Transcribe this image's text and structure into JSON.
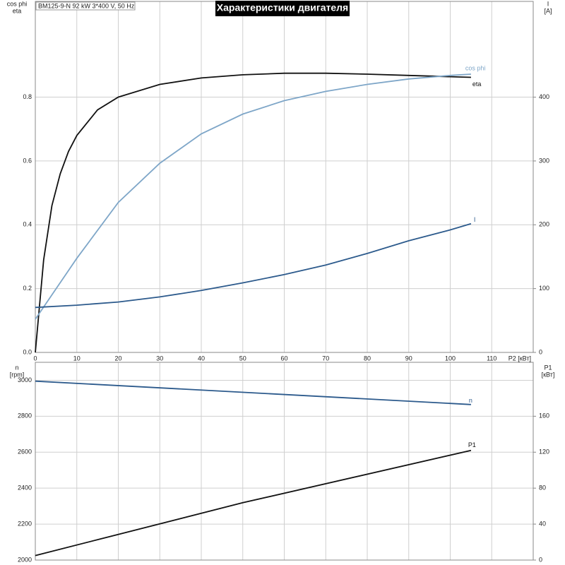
{
  "chart_data": [
    {
      "type": "line",
      "title": "Характеристики двигателя",
      "subtitle": "BM125-9-N   92 kW   3*400 V, 50 Hz",
      "xlabel": "P2 [кВт]",
      "ylabel": [
        "cos phi",
        "eta"
      ],
      "y2label": [
        "I",
        "[A]"
      ],
      "xlim": [
        0,
        120
      ],
      "xticks": [
        0,
        10,
        20,
        30,
        40,
        50,
        60,
        70,
        80,
        90,
        100,
        110
      ],
      "ylim": [
        0,
        1.1
      ],
      "yticks": [
        {
          "value": 0,
          "label": "0.0"
        },
        0.2,
        0.4,
        0.6,
        0.8
      ],
      "y2lim": [
        0,
        550
      ],
      "y2ticks": [
        0,
        100,
        200,
        300,
        400
      ],
      "grid": true,
      "series": [
        {
          "name": "eta",
          "color": "#111111",
          "x": [
            0,
            2,
            4,
            6,
            8,
            10,
            15,
            20,
            30,
            40,
            50,
            60,
            70,
            80,
            90,
            100,
            105
          ],
          "values": [
            0,
            0.29,
            0.46,
            0.56,
            0.63,
            0.68,
            0.76,
            0.8,
            0.84,
            0.86,
            0.87,
            0.875,
            0.875,
            0.872,
            0.868,
            0.864,
            0.862
          ]
        },
        {
          "name": "cos phi",
          "color": "#7ea6c8",
          "x": [
            0,
            10,
            20,
            30,
            40,
            50,
            60,
            70,
            80,
            90,
            100,
            105
          ],
          "values": [
            0.104,
            0.295,
            0.47,
            0.593,
            0.685,
            0.747,
            0.789,
            0.818,
            0.84,
            0.857,
            0.868,
            0.872
          ]
        },
        {
          "name": "I",
          "color": "#2c5a8c",
          "axis": "y2",
          "x": [
            0,
            10,
            20,
            30,
            40,
            50,
            60,
            70,
            80,
            90,
            100,
            105
          ],
          "values": [
            70.5,
            74,
            79,
            87,
            97,
            109,
            122,
            137,
            155,
            175,
            192,
            201.6
          ]
        }
      ]
    },
    {
      "type": "line",
      "ylabel": [
        "n",
        "[rpm]"
      ],
      "y2label": [
        "P1",
        "[кВт]"
      ],
      "xlim": [
        0,
        120
      ],
      "ylim": [
        2000,
        3100
      ],
      "yticks": [
        2000,
        2200,
        2400,
        2600,
        2800,
        3000
      ],
      "y2lim": [
        0,
        220
      ],
      "y2ticks": [
        0,
        40,
        80,
        120,
        160
      ],
      "grid": true,
      "series": [
        {
          "name": "n",
          "color": "#2c5a8c",
          "x": [
            0,
            105
          ],
          "values": [
            2995,
            2865
          ]
        },
        {
          "name": "P1",
          "color": "#111111",
          "axis": "y2",
          "x": [
            0,
            50,
            105
          ],
          "values": [
            5,
            63.8,
            122
          ]
        }
      ]
    }
  ]
}
